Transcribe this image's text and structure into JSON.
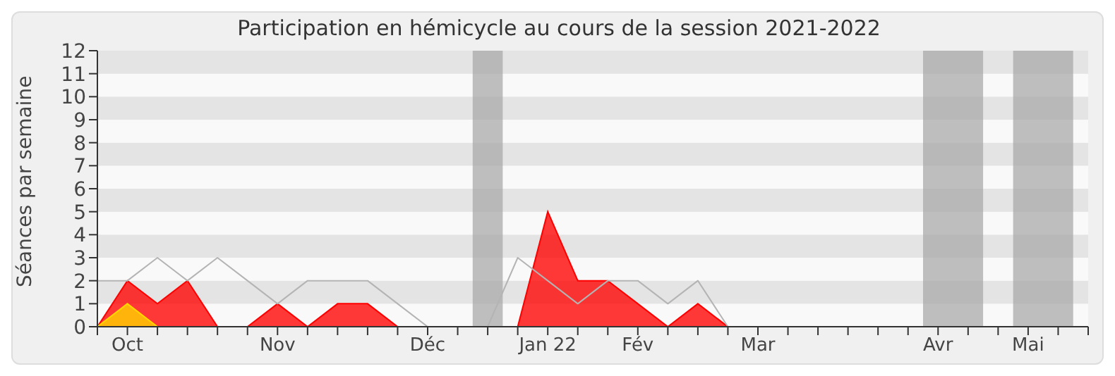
{
  "chart_data": {
    "type": "area",
    "title": "Participation en hémicycle au cours de la session 2021-2022",
    "ylabel": "Séances par semaine",
    "categories": [
      null,
      "Oct",
      null,
      null,
      null,
      null,
      "Nov",
      null,
      null,
      null,
      null,
      "Déc",
      null,
      null,
      null,
      "Jan 22",
      null,
      null,
      "Fév",
      null,
      null,
      null,
      "Mar",
      null,
      null,
      null,
      null,
      null,
      "Avr",
      null,
      null,
      "Mai",
      null,
      null
    ],
    "ylim": [
      0,
      12
    ],
    "yticks": [
      0,
      1,
      2,
      3,
      4,
      5,
      6,
      7,
      8,
      9,
      10,
      11,
      12
    ],
    "legend": false,
    "series": [
      {
        "type": "line",
        "color": "#b4b4b4",
        "values": [
          2,
          2,
          3,
          2,
          3,
          2,
          1,
          2,
          2,
          2,
          1,
          0,
          0,
          0,
          3,
          2,
          1,
          2,
          2,
          1,
          2,
          0,
          0,
          0,
          0,
          0,
          0,
          0,
          0,
          0,
          0,
          0,
          0,
          0
        ]
      },
      {
        "color": "#ff0000",
        "values": [
          0,
          2,
          1,
          2,
          0,
          0,
          1,
          0,
          1,
          1,
          0,
          0,
          0,
          0,
          0,
          5,
          2,
          2,
          1,
          0,
          1,
          0,
          0,
          0,
          0,
          0,
          0,
          0,
          0,
          0,
          0,
          0,
          0,
          0
        ]
      },
      {
        "color": "#ffd700",
        "values": [
          0,
          1,
          0,
          0,
          0,
          0,
          0,
          0,
          0,
          0,
          0,
          0,
          0,
          0,
          0,
          0,
          0,
          0,
          0,
          0,
          0,
          0,
          0,
          0,
          0,
          0,
          0,
          0,
          0,
          0,
          0,
          0,
          0,
          0
        ]
      }
    ]
  }
}
